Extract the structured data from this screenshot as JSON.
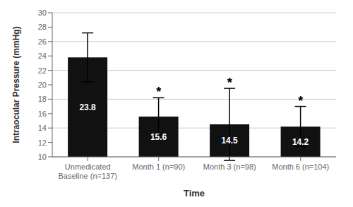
{
  "chart_data": {
    "type": "bar",
    "categories": [
      "Unmedicated\nBaseline (n=137)",
      "Month 1 (n=90)",
      "Month 3 (n=98)",
      "Month 6 (n=104)"
    ],
    "values": [
      23.8,
      15.6,
      14.5,
      14.2
    ],
    "errors": [
      3.4,
      2.6,
      5.0,
      2.8
    ],
    "significance": [
      false,
      true,
      true,
      true
    ],
    "significance_label": "*",
    "color": "#111111",
    "data_labels": true,
    "xlabel": "Time",
    "ylabel": "Intraocular Pressure (mmHg)",
    "ylim": [
      10,
      30
    ],
    "yticks": [
      10,
      12,
      14,
      16,
      18,
      20,
      22,
      24,
      26,
      28,
      30
    ],
    "grid": true
  }
}
